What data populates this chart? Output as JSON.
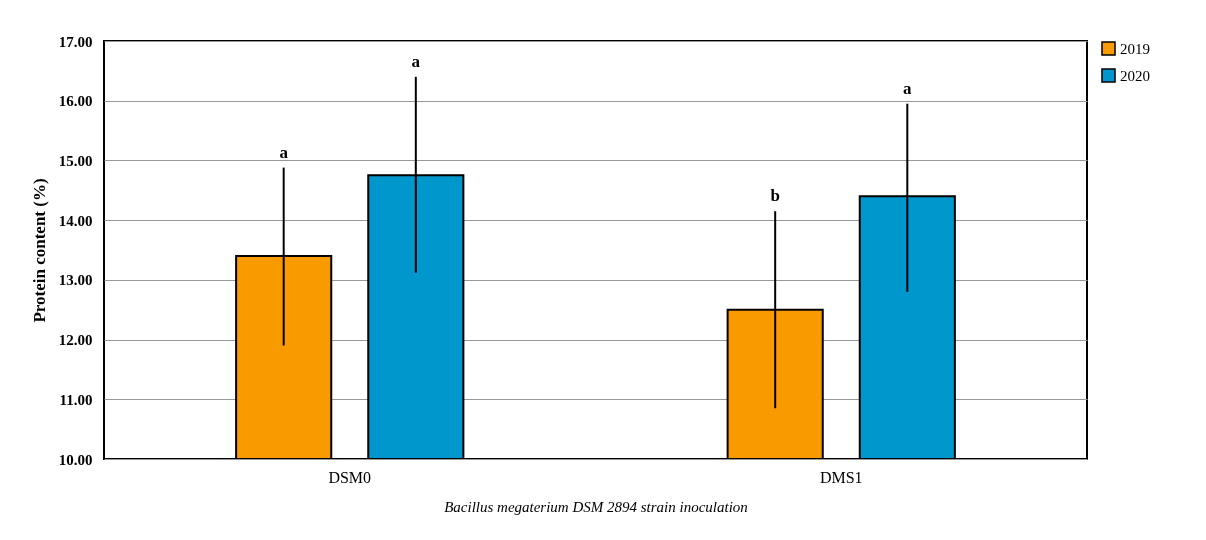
{
  "chart_data": {
    "type": "bar",
    "xlabel": "Bacillus megaterium DSM 2894 strain inoculation",
    "ylabel": "Protein content (%)",
    "categories": [
      "DSM0",
      "DMS1"
    ],
    "series": [
      {
        "name": "2019",
        "color": "#f99b00",
        "values": [
          13.4,
          12.5
        ],
        "errors": [
          [
            11.9,
            14.88
          ],
          [
            10.85,
            14.15
          ]
        ]
      },
      {
        "name": "2020",
        "color": "#0097cc",
        "values": [
          14.75,
          14.4
        ],
        "errors": [
          [
            13.12,
            16.4
          ],
          [
            12.8,
            15.95
          ]
        ]
      }
    ],
    "ylim": [
      10,
      17
    ],
    "yticks": [
      {
        "value": 10,
        "label": "10.00"
      },
      {
        "value": 11,
        "label": "11.00"
      },
      {
        "value": 12,
        "label": "12.00"
      },
      {
        "value": 13,
        "label": "13.00"
      },
      {
        "value": 14,
        "label": "14.00"
      },
      {
        "value": 15,
        "label": "15.00"
      },
      {
        "value": 16,
        "label": "16.00"
      },
      {
        "value": 17,
        "label": "17.00"
      }
    ],
    "grid": "y",
    "legend": "top right",
    "annotations": [
      "a",
      "a",
      "b",
      "a"
    ]
  }
}
